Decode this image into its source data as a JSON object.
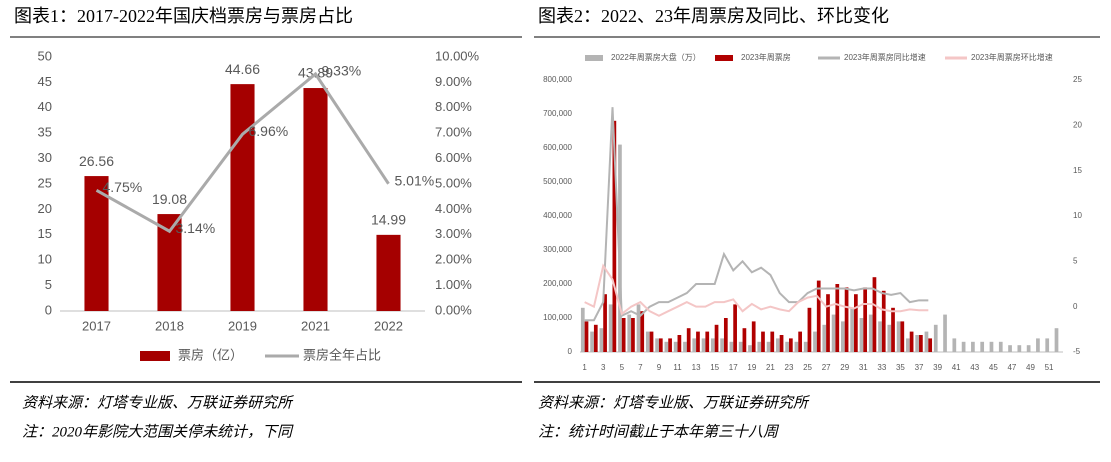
{
  "chart_data": [
    {
      "type": "combo",
      "title": "图表1：2017-2022年国庆档票房与票房占比",
      "categories": [
        "2017",
        "2018",
        "2019",
        "2021",
        "2022"
      ],
      "data_labels": true,
      "legend": "bottom",
      "grid": false,
      "series": [
        {
          "name": "票房（亿）",
          "color": "#a50000",
          "values": [
            26.56,
            19.08,
            44.66,
            43.89,
            14.99
          ]
        },
        {
          "name": "票房全年占比",
          "color": "#aaaaaa",
          "axis": "y2",
          "values": [
            4.75,
            3.14,
            6.96,
            9.33,
            5.01
          ],
          "value_labels": [
            "4.75%",
            "3.14%",
            "6.96%",
            "9.33%",
            "5.01%"
          ]
        }
      ],
      "ylim": [
        0,
        50
      ],
      "yticks": [
        0,
        5,
        10,
        15,
        20,
        25,
        30,
        35,
        40,
        45,
        50
      ],
      "y2lim": [
        0,
        10
      ],
      "y2ticks": [
        {
          "value": 0,
          "label": "0.00%"
        },
        {
          "value": 1,
          "label": "1.00%"
        },
        {
          "value": 2,
          "label": "2.00%"
        },
        {
          "value": 3,
          "label": "3.00%"
        },
        {
          "value": 4,
          "label": "4.00%"
        },
        {
          "value": 5,
          "label": "5.00%"
        },
        {
          "value": 6,
          "label": "6.00%"
        },
        {
          "value": 7,
          "label": "7.00%"
        },
        {
          "value": 8,
          "label": "8.00%"
        },
        {
          "value": 9,
          "label": "9.00%"
        },
        {
          "value": 10,
          "label": "10.00%"
        }
      ]
    },
    {
      "type": "combo",
      "title": "图表2：2022、23年周票房及同比、环比变化",
      "categories": [
        "1",
        null,
        "3",
        null,
        "5",
        null,
        "7",
        null,
        "9",
        null,
        "11",
        null,
        "13",
        null,
        "15",
        null,
        "17",
        null,
        "19",
        null,
        "21",
        null,
        "23",
        null,
        "25",
        null,
        "27",
        null,
        "29",
        null,
        "31",
        null,
        "33",
        null,
        "35",
        null,
        "37",
        null,
        "39",
        null,
        "41",
        null,
        "43",
        null,
        "45",
        null,
        "47",
        null,
        "49",
        null,
        "51",
        null
      ],
      "data_labels": false,
      "legend": "top",
      "grid": false,
      "series": [
        {
          "name": "2022年周票房大盘（万）",
          "color": "#b4b4b4",
          "values": [
            130000,
            60000,
            70000,
            140000,
            610000,
            110000,
            140000,
            60000,
            40000,
            30000,
            30000,
            30000,
            40000,
            40000,
            40000,
            40000,
            30000,
            30000,
            20000,
            30000,
            30000,
            40000,
            30000,
            30000,
            30000,
            60000,
            80000,
            110000,
            90000,
            130000,
            100000,
            110000,
            90000,
            80000,
            90000,
            40000,
            50000,
            60000,
            80000,
            110000,
            40000,
            30000,
            30000,
            30000,
            30000,
            30000,
            20000,
            20000,
            20000,
            40000,
            40000,
            70000
          ]
        },
        {
          "name": "2023年周票房",
          "color": "#b00000",
          "values": [
            90000,
            80000,
            170000,
            680000,
            100000,
            100000,
            120000,
            60000,
            40000,
            40000,
            50000,
            70000,
            60000,
            60000,
            80000,
            100000,
            140000,
            70000,
            90000,
            60000,
            60000,
            50000,
            40000,
            60000,
            130000,
            210000,
            170000,
            200000,
            190000,
            170000,
            190000,
            220000,
            180000,
            130000,
            90000,
            60000,
            50000,
            40000,
            null,
            null,
            null,
            null,
            null,
            null,
            null,
            null,
            null,
            null,
            null,
            null,
            null,
            null
          ]
        },
        {
          "name": "2023年周票房同比增速",
          "color": "#b4b4b4",
          "axis": "y2",
          "values": [
            -1.5,
            -1.5,
            0.5,
            22,
            -1,
            -0.5,
            -1,
            0,
            0.5,
            0.5,
            1,
            1.5,
            2.5,
            2.5,
            2.5,
            5.8,
            4,
            5,
            3.8,
            4.3,
            3.5,
            1.5,
            0.5,
            0.5,
            1.5,
            2,
            2,
            2,
            2,
            1.8,
            2,
            2,
            1.5,
            1.3,
            1.5,
            0.5,
            0.7,
            0.7,
            null,
            null,
            null,
            null,
            null,
            null,
            null,
            null,
            null,
            null,
            null,
            null,
            null,
            null
          ]
        },
        {
          "name": "2023年周票房环比增速",
          "color": "#f4c6c6",
          "axis": "y2",
          "values": [
            0.5,
            0,
            4.5,
            3,
            -0.8,
            0,
            0.5,
            -0.5,
            -1,
            -0.5,
            0,
            0.5,
            0,
            0,
            0.5,
            0.5,
            0.8,
            -0.5,
            0.3,
            -0.3,
            0,
            -0.3,
            -0.5,
            0.5,
            1,
            1.2,
            0,
            0.3,
            0,
            -0.2,
            0.3,
            0.3,
            -0.3,
            -0.5,
            -0.5,
            -0.3,
            -0.4,
            -0.4,
            null,
            null,
            null,
            null,
            null,
            null,
            null,
            null,
            null,
            null,
            null,
            null,
            null,
            null
          ]
        }
      ],
      "ylim": [
        0,
        800000
      ],
      "yticks": [
        0,
        {
          "value": 100000,
          "label": "100,000"
        },
        {
          "value": 200000,
          "label": "200,000"
        },
        {
          "value": 300000,
          "label": "300,000"
        },
        {
          "value": 400000,
          "label": "400,000"
        },
        {
          "value": 500000,
          "label": "500,000"
        },
        {
          "value": 600000,
          "label": "600,000"
        },
        {
          "value": 700000,
          "label": "700,000"
        },
        {
          "value": 800000,
          "label": "800,000"
        }
      ],
      "y2lim": [
        -5,
        25
      ],
      "y2ticks": [
        -5,
        0,
        5,
        10,
        15,
        20,
        25
      ]
    }
  ],
  "notes": {
    "left": [
      "资料来源：灯塔专业版、万联证券研究所",
      "注：2020年影院大范围关停未统计，下同"
    ],
    "right": [
      "资料来源：灯塔专业版、万联证券研究所",
      "注：统计时间截止于本年第三十八周"
    ]
  }
}
